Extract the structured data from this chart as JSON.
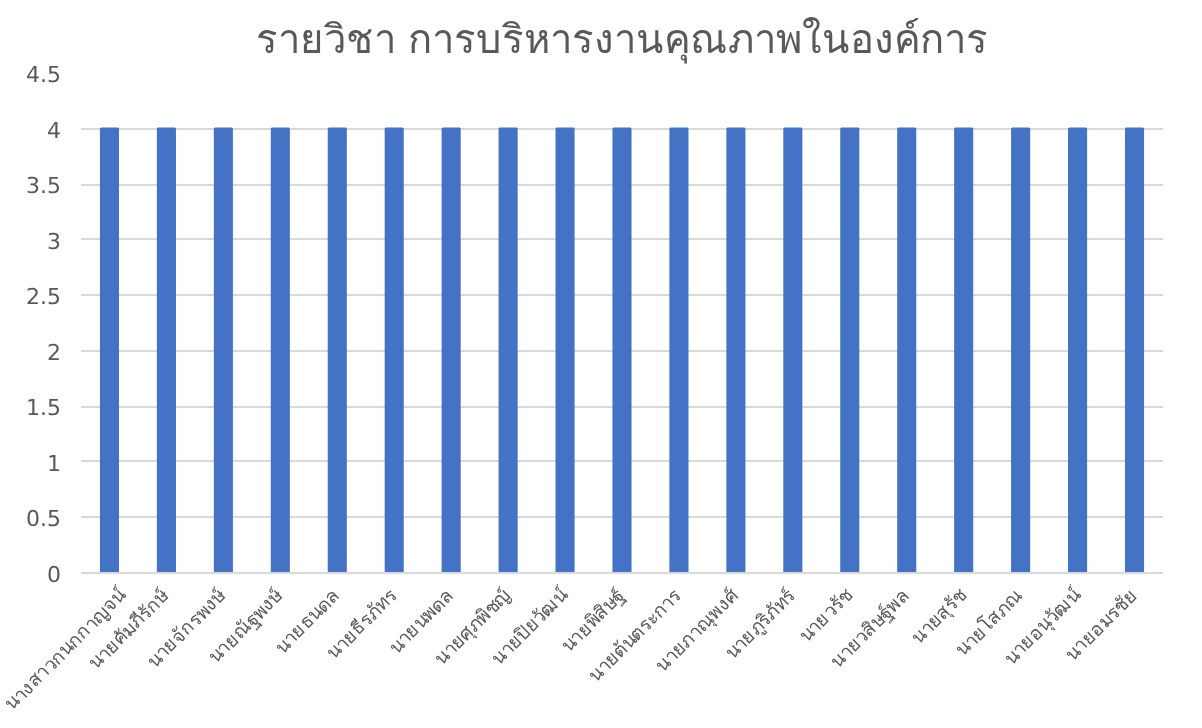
{
  "chart_data": {
    "type": "bar",
    "title": "รายวิชา การบริหารงานคุณภาพในองค์การ",
    "categories": [
      "นางสาวกนกกาญจน์",
      "นายคัมภีรักษ์",
      "นายจักรพงษ์",
      "นายณัฐพงษ์",
      "นายธนดล",
      "นายธีรภัทร",
      "นายนพดล",
      "นายศุภพิชญ์",
      "นายปิยวัฒน์",
      "นายพิสิษฐ์",
      "นายต้นตระการ",
      "นายภาณุพงศ์",
      "นายภูริภัทร์",
      "นายวรัช",
      "นายวสิษฐ์พล",
      "นายสุรัช",
      "นายโสภณ",
      "นายอนุวัฒน์",
      "นายอมรชัย"
    ],
    "values": [
      4,
      4,
      4,
      4,
      4,
      4,
      4,
      4,
      4,
      4,
      4,
      4,
      4,
      4,
      4,
      4,
      4,
      4,
      4
    ],
    "color": "#4472c4",
    "ylim": [
      0,
      4.5
    ],
    "yticks": [
      0,
      0.5,
      1,
      1.5,
      2,
      2.5,
      3,
      3.5,
      4,
      4.5
    ],
    "grid": "y"
  }
}
